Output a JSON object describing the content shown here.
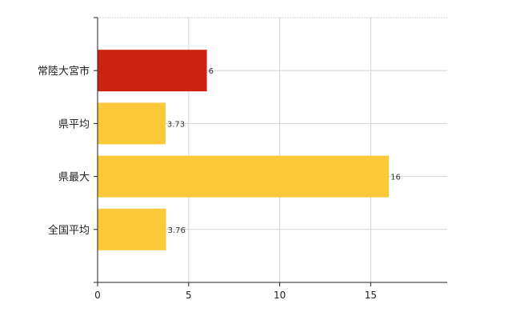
{
  "chart_data": {
    "type": "bar",
    "orientation": "horizontal",
    "categories": [
      "常陸大宮市",
      "県平均",
      "県最大",
      "全国平均"
    ],
    "values": [
      6,
      3.73,
      16,
      3.76
    ],
    "value_labels": [
      "6",
      "3.73",
      "16",
      "3.76"
    ],
    "bar_colors": [
      "#cc2211",
      "#f9c93a",
      "#f9c93a",
      "#f9c93a"
    ],
    "xlim": [
      0,
      19.2
    ],
    "xticks": [
      0,
      5,
      10,
      15
    ],
    "xtick_labels": [
      "0",
      "5",
      "10",
      "15"
    ],
    "grid": true,
    "title": "",
    "xlabel": "",
    "ylabel": ""
  }
}
